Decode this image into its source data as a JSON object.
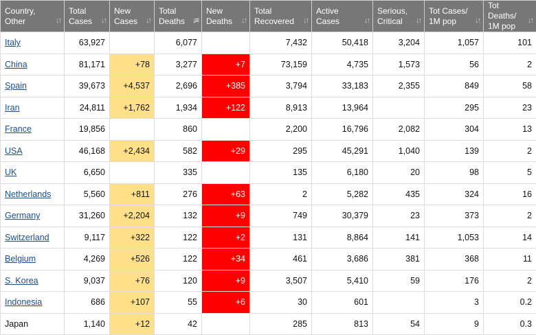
{
  "columns": [
    {
      "l1": "Country,",
      "l2": "Other",
      "active": false
    },
    {
      "l1": "Total",
      "l2": "Cases",
      "active": false
    },
    {
      "l1": "New",
      "l2": "Cases",
      "active": false
    },
    {
      "l1": "Total",
      "l2": "Deaths",
      "active": true
    },
    {
      "l1": "New",
      "l2": "Deaths",
      "active": false
    },
    {
      "l1": "Total",
      "l2": "Recovered",
      "active": false
    },
    {
      "l1": "Active",
      "l2": "Cases",
      "active": false
    },
    {
      "l1": "Serious,",
      "l2": "Critical",
      "active": false
    },
    {
      "l1": "Tot Cases/",
      "l2": "1M pop",
      "active": false
    },
    {
      "l1": "Tot Deaths/",
      "l2": "1M pop",
      "active": false
    }
  ],
  "colors": {
    "header_bg": "#777777",
    "new_cases_highlight": "#ffe08a",
    "new_deaths_highlight": "#ff0000",
    "link": "#1a4f8b"
  },
  "sort_icons": {
    "inactive": "sort-arrows-icon",
    "active": "sort-descending-icon"
  },
  "rows": [
    {
      "country": "Italy",
      "link": true,
      "total_cases": "63,927",
      "new_cases": "",
      "total_deaths": "6,077",
      "new_deaths": "",
      "total_recovered": "7,432",
      "active_cases": "50,418",
      "serious_critical": "3,204",
      "tot_cases_1m": "1,057",
      "tot_deaths_1m": "101"
    },
    {
      "country": "China",
      "link": true,
      "total_cases": "81,171",
      "new_cases": "+78",
      "total_deaths": "3,277",
      "new_deaths": "+7",
      "total_recovered": "73,159",
      "active_cases": "4,735",
      "serious_critical": "1,573",
      "tot_cases_1m": "56",
      "tot_deaths_1m": "2"
    },
    {
      "country": "Spain",
      "link": true,
      "total_cases": "39,673",
      "new_cases": "+4,537",
      "total_deaths": "2,696",
      "new_deaths": "+385",
      "total_recovered": "3,794",
      "active_cases": "33,183",
      "serious_critical": "2,355",
      "tot_cases_1m": "849",
      "tot_deaths_1m": "58"
    },
    {
      "country": "Iran",
      "link": true,
      "total_cases": "24,811",
      "new_cases": "+1,762",
      "total_deaths": "1,934",
      "new_deaths": "+122",
      "total_recovered": "8,913",
      "active_cases": "13,964",
      "serious_critical": "",
      "tot_cases_1m": "295",
      "tot_deaths_1m": "23"
    },
    {
      "country": "France",
      "link": true,
      "total_cases": "19,856",
      "new_cases": "",
      "total_deaths": "860",
      "new_deaths": "",
      "total_recovered": "2,200",
      "active_cases": "16,796",
      "serious_critical": "2,082",
      "tot_cases_1m": "304",
      "tot_deaths_1m": "13"
    },
    {
      "country": "USA",
      "link": true,
      "total_cases": "46,168",
      "new_cases": "+2,434",
      "total_deaths": "582",
      "new_deaths": "+29",
      "total_recovered": "295",
      "active_cases": "45,291",
      "serious_critical": "1,040",
      "tot_cases_1m": "139",
      "tot_deaths_1m": "2"
    },
    {
      "country": "UK",
      "link": true,
      "total_cases": "6,650",
      "new_cases": "",
      "total_deaths": "335",
      "new_deaths": "",
      "total_recovered": "135",
      "active_cases": "6,180",
      "serious_critical": "20",
      "tot_cases_1m": "98",
      "tot_deaths_1m": "5"
    },
    {
      "country": "Netherlands",
      "link": true,
      "total_cases": "5,560",
      "new_cases": "+811",
      "total_deaths": "276",
      "new_deaths": "+63",
      "total_recovered": "2",
      "active_cases": "5,282",
      "serious_critical": "435",
      "tot_cases_1m": "324",
      "tot_deaths_1m": "16"
    },
    {
      "country": "Germany",
      "link": true,
      "total_cases": "31,260",
      "new_cases": "+2,204",
      "total_deaths": "132",
      "new_deaths": "+9",
      "total_recovered": "749",
      "active_cases": "30,379",
      "serious_critical": "23",
      "tot_cases_1m": "373",
      "tot_deaths_1m": "2"
    },
    {
      "country": "Switzerland",
      "link": true,
      "total_cases": "9,117",
      "new_cases": "+322",
      "total_deaths": "122",
      "new_deaths": "+2",
      "total_recovered": "131",
      "active_cases": "8,864",
      "serious_critical": "141",
      "tot_cases_1m": "1,053",
      "tot_deaths_1m": "14"
    },
    {
      "country": "Belgium",
      "link": true,
      "total_cases": "4,269",
      "new_cases": "+526",
      "total_deaths": "122",
      "new_deaths": "+34",
      "total_recovered": "461",
      "active_cases": "3,686",
      "serious_critical": "381",
      "tot_cases_1m": "368",
      "tot_deaths_1m": "11"
    },
    {
      "country": "S. Korea",
      "link": true,
      "total_cases": "9,037",
      "new_cases": "+76",
      "total_deaths": "120",
      "new_deaths": "+9",
      "total_recovered": "3,507",
      "active_cases": "5,410",
      "serious_critical": "59",
      "tot_cases_1m": "176",
      "tot_deaths_1m": "2"
    },
    {
      "country": "Indonesia",
      "link": true,
      "total_cases": "686",
      "new_cases": "+107",
      "total_deaths": "55",
      "new_deaths": "+6",
      "total_recovered": "30",
      "active_cases": "601",
      "serious_critical": "",
      "tot_cases_1m": "3",
      "tot_deaths_1m": "0.2"
    },
    {
      "country": "Japan",
      "link": false,
      "total_cases": "1,140",
      "new_cases": "+12",
      "total_deaths": "42",
      "new_deaths": "",
      "total_recovered": "285",
      "active_cases": "813",
      "serious_critical": "54",
      "tot_cases_1m": "9",
      "tot_deaths_1m": "0.3"
    }
  ]
}
